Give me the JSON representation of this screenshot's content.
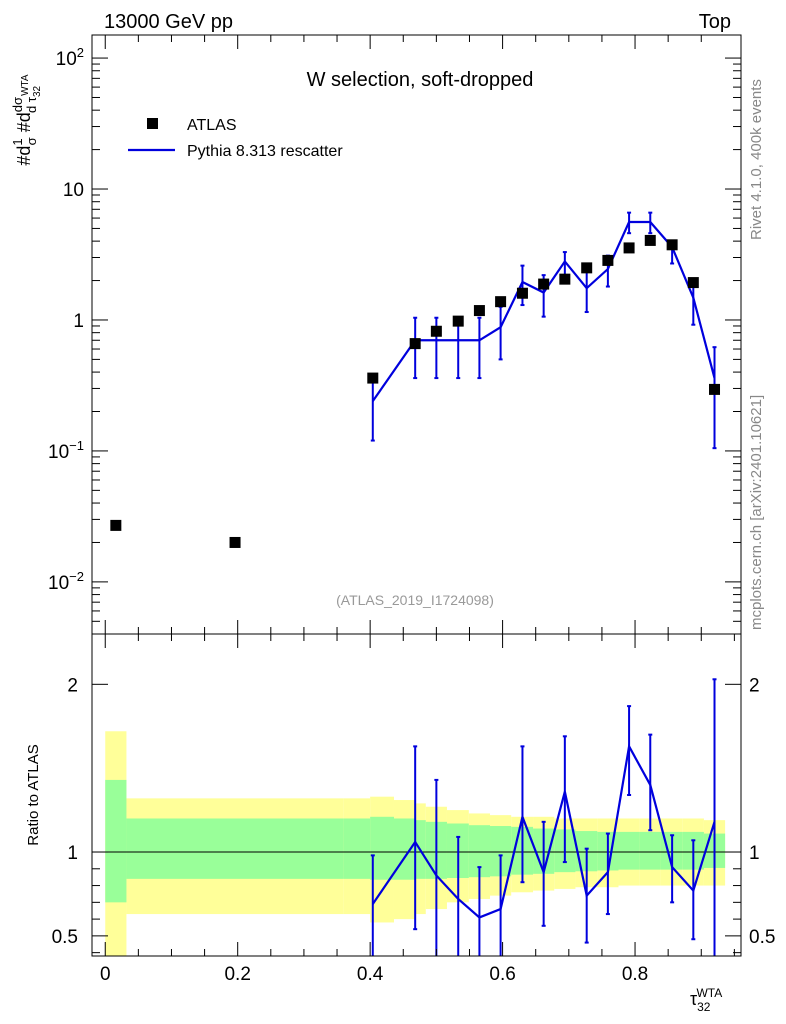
{
  "header": {
    "left": "13000 GeV pp",
    "right": "Top"
  },
  "side_text": {
    "rivet": "Rivet 4.1.0,  400k events",
    "mcplots": "mcplots.cern.ch [arXiv:2401.10621]"
  },
  "chart_data": [
    {
      "type": "scatter",
      "panel": "main",
      "title": "W selection, soft-dropped",
      "analysis_ref": "(ATLAS_2019_I1724098)",
      "ylabel": "#d1/σ #dd σ/d τ32^WTA",
      "yscale": "log",
      "ylim": [
        0.004,
        150
      ],
      "xlim": [
        -0.02,
        0.96
      ],
      "ytick_labels": [
        "10^-2",
        "10^-1",
        "1",
        "10",
        "10^2"
      ],
      "ytick_values": [
        0.01,
        0.1,
        1,
        10,
        100
      ],
      "legend": {
        "position": "top-left",
        "data_label": "ATLAS",
        "mc_label": "Pythia 8.313 rescatter"
      },
      "data": {
        "name": "ATLAS",
        "x": [
          0.016,
          0.196,
          0.404,
          0.468,
          0.5,
          0.533,
          0.565,
          0.597,
          0.63,
          0.662,
          0.694,
          0.727,
          0.759,
          0.791,
          0.823,
          0.856,
          0.888,
          0.92
        ],
        "y": [
          0.027,
          0.02,
          0.36,
          0.66,
          0.82,
          0.98,
          1.18,
          1.38,
          1.6,
          1.88,
          2.05,
          2.5,
          2.85,
          3.55,
          4.05,
          3.75,
          1.93,
          0.295
        ]
      },
      "mc": {
        "name": "Pythia 8.313 rescatter",
        "x": [
          0.404,
          0.468,
          0.5,
          0.533,
          0.565,
          0.597,
          0.63,
          0.662,
          0.694,
          0.727,
          0.759,
          0.791,
          0.823,
          0.856,
          0.888,
          0.92
        ],
        "y": [
          0.24,
          0.7,
          0.7,
          0.7,
          0.7,
          0.88,
          1.95,
          1.62,
          2.8,
          1.75,
          2.45,
          5.6,
          5.6,
          3.6,
          1.48,
          0.36
        ],
        "ylow": [
          0.12,
          0.36,
          0.36,
          0.36,
          0.36,
          0.5,
          1.3,
          1.06,
          1.9,
          1.15,
          1.8,
          4.6,
          4.6,
          2.7,
          0.92,
          0.105
        ],
        "yhigh": [
          0.36,
          1.04,
          1.04,
          1.04,
          1.04,
          1.26,
          2.6,
          2.2,
          3.3,
          2.35,
          3.1,
          6.6,
          6.6,
          4.0,
          2.05,
          0.62
        ]
      }
    },
    {
      "type": "line",
      "panel": "ratio",
      "xlabel": "τ32^WTA",
      "ylabel": "Ratio to ATLAS",
      "ylim": [
        0.38,
        2.3
      ],
      "xtick_labels": [
        "0",
        "0.2",
        "0.4",
        "0.6",
        "0.8"
      ],
      "xtick_values": [
        0,
        0.2,
        0.4,
        0.6,
        0.8
      ],
      "ytick_labels": [
        "0.5",
        "1",
        "2"
      ],
      "ytick_values": [
        0.5,
        1,
        2
      ],
      "bands": {
        "edges": [
          0.0,
          0.032,
          0.36,
          0.4,
          0.436,
          0.468,
          0.484,
          0.516,
          0.549,
          0.581,
          0.613,
          0.646,
          0.678,
          0.71,
          0.743,
          0.775,
          0.807,
          0.839,
          0.872,
          0.904,
          0.936
        ],
        "stat_low": [
          0.7,
          0.84,
          0.84,
          0.835,
          0.835,
          0.84,
          0.84,
          0.845,
          0.85,
          0.855,
          0.865,
          0.87,
          0.88,
          0.885,
          0.89,
          0.895,
          0.895,
          0.895,
          0.895,
          0.905
        ],
        "stat_high": [
          1.43,
          1.2,
          1.2,
          1.21,
          1.2,
          1.19,
          1.18,
          1.17,
          1.16,
          1.155,
          1.15,
          1.14,
          1.135,
          1.125,
          1.12,
          1.12,
          1.12,
          1.12,
          1.12,
          1.11
        ],
        "sys_low": [
          0.3,
          0.63,
          0.63,
          0.58,
          0.6,
          0.63,
          0.66,
          0.7,
          0.72,
          0.74,
          0.76,
          0.77,
          0.78,
          0.79,
          0.79,
          0.8,
          0.8,
          0.8,
          0.8,
          0.8
        ],
        "sys_high": [
          1.72,
          1.32,
          1.32,
          1.33,
          1.31,
          1.29,
          1.27,
          1.25,
          1.23,
          1.22,
          1.21,
          1.21,
          1.2,
          1.2,
          1.2,
          1.2,
          1.2,
          1.2,
          1.2,
          1.19
        ]
      },
      "mc": {
        "name": "Pythia 8.313 rescatter",
        "x": [
          0.404,
          0.468,
          0.5,
          0.533,
          0.565,
          0.597,
          0.63,
          0.662,
          0.694,
          0.727,
          0.759,
          0.791,
          0.823,
          0.856,
          0.888,
          0.92
        ],
        "y": [
          0.69,
          1.06,
          0.86,
          0.72,
          0.61,
          0.66,
          1.21,
          0.88,
          1.36,
          0.74,
          0.88,
          1.63,
          1.4,
          0.91,
          0.77,
          1.18
        ],
        "ylow": [
          0.35,
          0.54,
          0.38,
          0.34,
          0.29,
          0.33,
          0.82,
          0.56,
          0.94,
          0.46,
          0.63,
          1.34,
          1.13,
          0.7,
          0.48,
          0.34
        ],
        "yhigh": [
          0.98,
          1.63,
          1.43,
          1.09,
          0.91,
          0.98,
          1.63,
          1.18,
          1.69,
          1.02,
          1.11,
          1.87,
          1.7,
          1.1,
          1.07,
          2.03
        ]
      },
      "reference_line": 1
    }
  ]
}
